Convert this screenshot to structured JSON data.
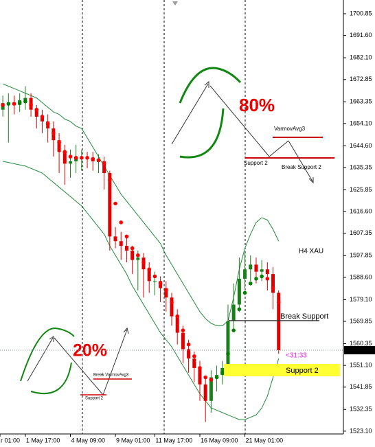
{
  "chart_data": {
    "type": "candlestick",
    "candles": [
      [
        1660,
        1666,
        1657,
        1662.8
      ],
      [
        1662.8,
        1667,
        1646,
        1663
      ],
      [
        1663,
        1666,
        1658,
        1662
      ],
      [
        1662,
        1667,
        1659,
        1664
      ],
      [
        1664,
        1670,
        1660,
        1665
      ],
      [
        1665,
        1667,
        1657,
        1660
      ],
      [
        1660,
        1662,
        1652,
        1657
      ],
      [
        1657,
        1660,
        1650,
        1655
      ],
      [
        1655,
        1658,
        1646,
        1652
      ],
      [
        1652,
        1655,
        1640,
        1647
      ],
      [
        1647,
        1650,
        1633,
        1642
      ],
      [
        1642,
        1645,
        1628,
        1637
      ],
      [
        1637,
        1643,
        1631,
        1638
      ],
      [
        1638,
        1645,
        1633,
        1639
      ],
      [
        1639,
        1643,
        1634,
        1639.5
      ],
      [
        1639.5,
        1642,
        1635,
        1639
      ],
      [
        1639,
        1642,
        1634,
        1638
      ],
      [
        1638,
        1641,
        1633,
        1638
      ],
      [
        1638,
        1640,
        1626,
        1633
      ],
      [
        1633,
        1634,
        1600,
        1606
      ],
      [
        1606,
        1610,
        1601,
        1604
      ],
      [
        1604,
        1608,
        1596,
        1602
      ],
      [
        1602,
        1606,
        1595,
        1600
      ],
      [
        1600,
        1602,
        1590,
        1596
      ],
      [
        1596,
        1600,
        1583,
        1597
      ],
      [
        1597,
        1599,
        1580,
        1592
      ],
      [
        1592,
        1595,
        1582,
        1587
      ],
      [
        1587,
        1591,
        1581,
        1587
      ],
      [
        1587,
        1589,
        1578,
        1584
      ],
      [
        1584,
        1587,
        1574,
        1580
      ],
      [
        1580,
        1582,
        1568,
        1572
      ],
      [
        1572,
        1575,
        1560,
        1565
      ],
      [
        1565,
        1568,
        1552,
        1558
      ],
      [
        1558,
        1562,
        1548,
        1554
      ],
      [
        1554,
        1557,
        1544,
        1550
      ],
      [
        1550,
        1553,
        1536,
        1543
      ],
      [
        1543,
        1546,
        1527,
        1536
      ],
      [
        1536,
        1549,
        1531,
        1546
      ],
      [
        1546,
        1551,
        1540,
        1547
      ],
      [
        1547,
        1553,
        1543,
        1550
      ],
      [
        1550,
        1577,
        1548,
        1570
      ],
      [
        1570,
        1586,
        1566,
        1577
      ],
      [
        1577,
        1597,
        1574,
        1588
      ],
      [
        1588,
        1599,
        1584,
        1592
      ],
      [
        1592,
        1598,
        1587,
        1594
      ],
      [
        1594,
        1597,
        1586,
        1591
      ],
      [
        1591,
        1596,
        1587,
        1592
      ],
      [
        1592,
        1595,
        1583,
        1590
      ],
      [
        1590,
        1593,
        1575,
        1582
      ],
      [
        1582,
        1583,
        1556,
        1557.56
      ]
    ],
    "ma": [
      1662,
      1662.5,
      1662.5,
      1663,
      1663.5,
      1662,
      1660,
      1657,
      1654,
      1650,
      1646,
      1642,
      1640,
      1639.5,
      1639.5,
      1639.5,
      1639,
      1638.5,
      1637,
      1630,
      1620,
      1612,
      1606,
      1601,
      1598,
      1595,
      1592,
      1589,
      1586,
      1583,
      1578,
      1572,
      1566,
      1560,
      1555,
      1550,
      1546,
      1545,
      1546,
      1548,
      1556,
      1566,
      1575,
      1582,
      1586,
      1588,
      1589,
      1588,
      1584,
      1578
    ],
    "upper_band": [
      1671,
      1670,
      1669,
      1668,
      1667,
      1666,
      1665,
      1663,
      1661,
      1659,
      1658,
      1656,
      1655,
      1653,
      1652,
      1648,
      1644,
      1640,
      1636,
      1632,
      1628,
      1624,
      1621,
      1618,
      1615,
      1612,
      1609,
      1606,
      1603,
      1598,
      1594,
      1590,
      1586,
      1582,
      1578,
      1574,
      1571,
      1569,
      1568,
      1568,
      1570,
      1580,
      1592,
      1601,
      1607,
      1612,
      1614,
      1613,
      1609,
      1604
    ],
    "lower_band": [
      1638,
      1637.5,
      1637,
      1636.5,
      1636,
      1635,
      1634,
      1633,
      1631,
      1629,
      1627,
      1625,
      1623,
      1621,
      1619,
      1616,
      1613,
      1610,
      1607,
      1602,
      1598,
      1594,
      1590,
      1585,
      1581,
      1577,
      1573,
      1569,
      1565,
      1562,
      1559,
      1555,
      1551,
      1547,
      1543,
      1539,
      1536,
      1533,
      1532,
      1531,
      1530,
      1529,
      1528,
      1528,
      1529,
      1530,
      1533,
      1538,
      1546,
      1554
    ],
    "bull_color": "#1a7f1a",
    "bear_color": "#e00000",
    "ma_up_color": "#008000",
    "ma_down_color": "#ff0000",
    "band_color": "#1f8a3a",
    "xlim": [
      -0.5,
      60.5
    ],
    "xticks": [
      {
        "value": -0.5,
        "label": "r 01:00"
      },
      {
        "value": 4,
        "label": "1 May 17:00"
      },
      {
        "value": 12,
        "label": "4 May 09:00"
      },
      {
        "value": 20,
        "label": "9 May 01:00"
      },
      {
        "value": 27,
        "label": "11 May 17:00"
      },
      {
        "value": 35,
        "label": "16 May 09:00"
      },
      {
        "value": 43,
        "label": "21 May 01:00"
      }
    ],
    "ylim": [
      1521.9,
      1706.7
    ],
    "yticks": [
      1700.85,
      {
        "value": 1691.6,
        "label": "1691.60"
      },
      {
        "value": 1682.1,
        "label": "1682.10"
      },
      1672.85,
      1663.35,
      {
        "value": 1654.1,
        "label": "1654.10"
      },
      {
        "value": 1644.6,
        "label": "1644.60"
      },
      1635.35,
      1625.85,
      {
        "value": 1616.6,
        "label": "1616.60"
      },
      1607.35,
      1597.85,
      {
        "value": 1588.6,
        "label": "1588.60"
      },
      {
        "value": 1579.1,
        "label": "1579.10"
      },
      1569.85,
      1560.35,
      {
        "value": 1551.1,
        "label": "1551.10"
      },
      1541.85,
      1532.35,
      {
        "value": 1523.1,
        "label": "1523.10"
      }
    ],
    "last_price": 1557.56,
    "annotations": {
      "top_pct": "80%",
      "top_varmov": "VarmovAvg3",
      "top_support": "Support 2",
      "top_break": "Break Support 2",
      "symbol": "H4 XAU",
      "break_support": "Break Support",
      "support_box": "Support 2",
      "bottom_pct": "20%",
      "bottom_break": "Break VarmovAvg3",
      "bottom_support": "Support 2",
      "timer": "<31:33"
    }
  }
}
